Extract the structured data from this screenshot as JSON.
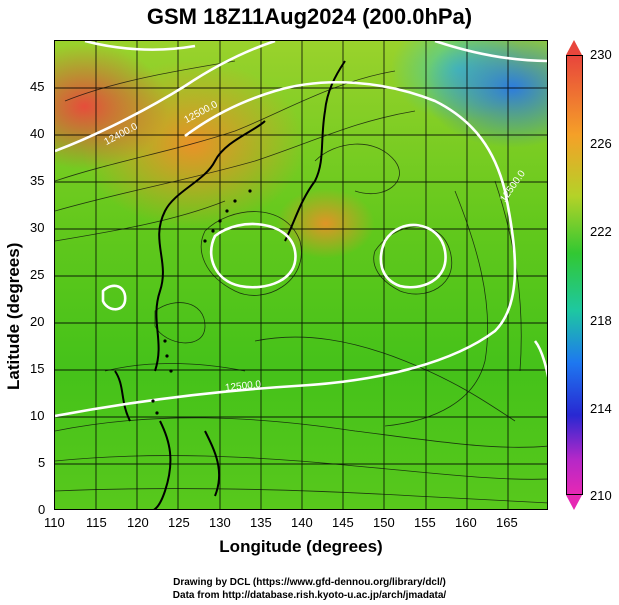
{
  "title": "GSM 18Z11Aug2024 (200.0hPa)",
  "x_axis": {
    "label": "Longitude (degrees)",
    "range": [
      110,
      170
    ],
    "ticks": [
      "110",
      "115",
      "120",
      "125",
      "130",
      "135",
      "140",
      "145",
      "150",
      "155",
      "160",
      "165"
    ]
  },
  "y_axis": {
    "label": "Latitude  (degrees)",
    "range": [
      0,
      50
    ],
    "ticks": [
      "0",
      "5",
      "10",
      "15",
      "20",
      "25",
      "30",
      "35",
      "40",
      "45"
    ]
  },
  "colorbar": {
    "range": [
      210,
      230
    ],
    "labels": [
      "230",
      "226",
      "222",
      "218",
      "214",
      "210"
    ],
    "colors": [
      "#e8463c",
      "#f5a028",
      "#b4d228",
      "#32c832",
      "#1ec8a0",
      "#1e78f0",
      "#2828d2",
      "#b428c8",
      "#e628b4"
    ]
  },
  "contour_labels": [
    "12400.0",
    "12500.0",
    "12500.0",
    "12500.0"
  ],
  "footer": {
    "line1": "Drawing by DCL (https://www.gfd-dennou.org/library/dcl/)",
    "line2": "Data from http://database.rish.kyoto-u.ac.jp/arch/jmadata/"
  }
}
